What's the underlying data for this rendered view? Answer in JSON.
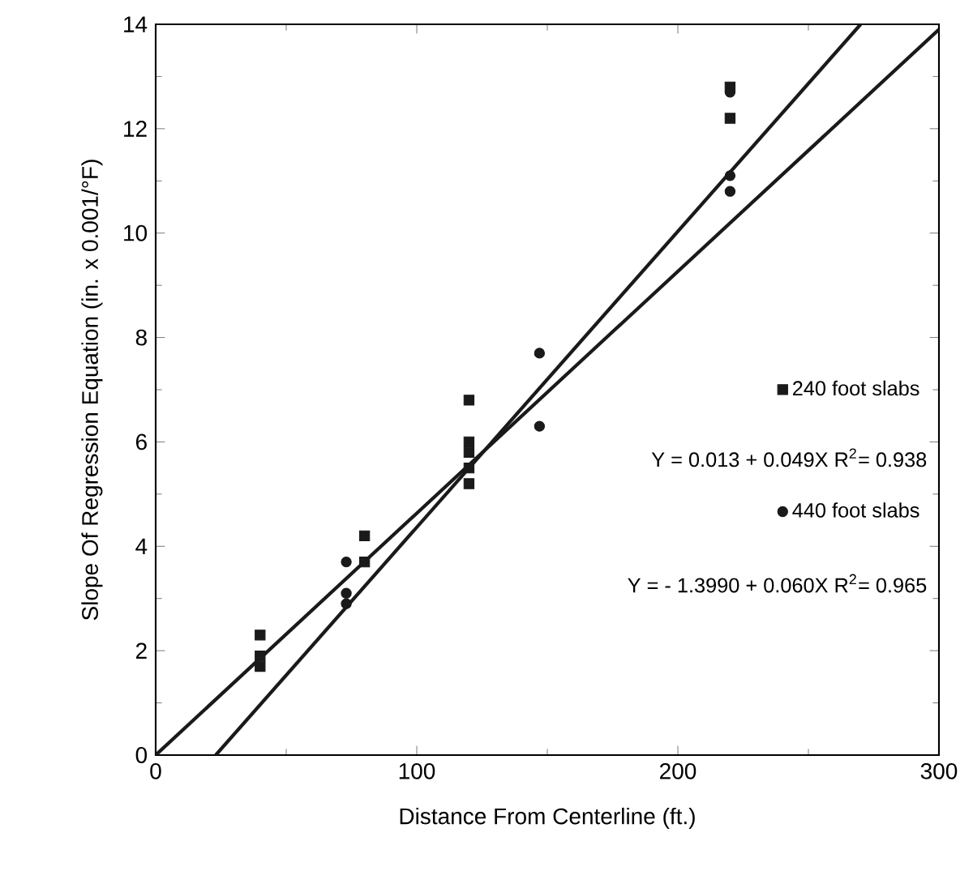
{
  "chart_data": {
    "type": "scatter",
    "xlabel": "Distance From Centerline (ft.)",
    "ylabel": "Slope Of Regression Equation (in. x 0.001/°F)",
    "xlim": [
      0,
      300
    ],
    "ylim": [
      0,
      14
    ],
    "xticks": [
      0,
      100,
      200,
      300
    ],
    "yticks": [
      0,
      2,
      4,
      6,
      8,
      10,
      12,
      14
    ],
    "grid": false,
    "legend": "right",
    "series": [
      {
        "name": "240 foot slabs",
        "color": "#1a1a1a",
        "marker": "square",
        "x": [
          40,
          40,
          40,
          80,
          80,
          120,
          120,
          120,
          120,
          120,
          220,
          220
        ],
        "values": [
          2.3,
          1.9,
          1.7,
          4.2,
          3.7,
          6.8,
          6.0,
          5.8,
          5.5,
          5.2,
          12.8,
          12.2
        ]
      },
      {
        "name": "440 foot slabs",
        "color": "#1a1a1a",
        "marker": "circle",
        "x": [
          73,
          73,
          73,
          147,
          147,
          220,
          220,
          220
        ],
        "values": [
          3.7,
          3.1,
          2.9,
          7.7,
          6.3,
          12.7,
          11.1,
          10.8
        ]
      },
      {
        "type": "line",
        "color": "#1a1a1a",
        "x": [
          0,
          300
        ],
        "values": [
          0.0,
          13.9
        ]
      },
      {
        "type": "line",
        "color": "#1a1a1a",
        "x": [
          23,
          270
        ],
        "values": [
          0,
          14
        ]
      }
    ],
    "annotations": [
      "Y = 0.013 + 0.049X  R$^{2}$= 0.938",
      "Y =  - 1.3990 + 0.060X  R$^{2}$= 0.965"
    ]
  }
}
